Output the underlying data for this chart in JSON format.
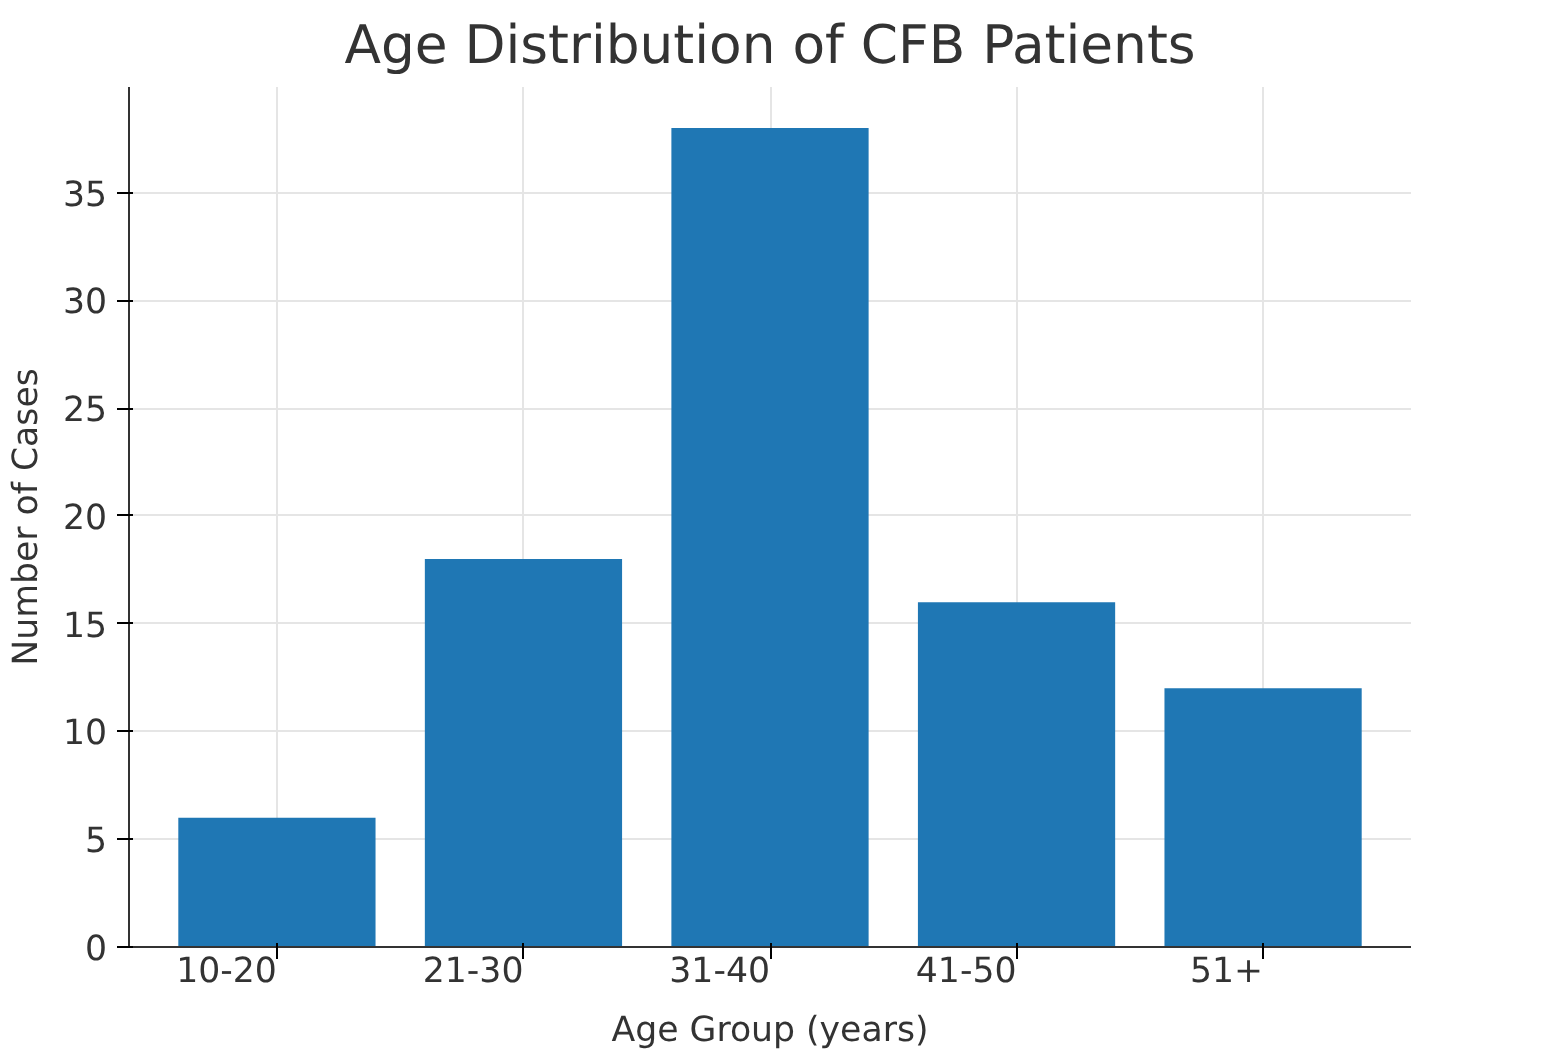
{
  "chart_data": {
    "type": "bar",
    "title": "Age Distribution of CFB Patients",
    "xlabel": "Age Group (years)",
    "ylabel": "Number of Cases",
    "categories": [
      "10-20",
      "21-30",
      "31-40",
      "41-50",
      "51+"
    ],
    "values": [
      6,
      18,
      38,
      16,
      12
    ],
    "color": "#1f77b4",
    "ylim": [
      0,
      39.9
    ],
    "yticks": [
      0,
      5,
      10,
      15,
      20,
      25,
      30,
      35
    ],
    "grid": true
  }
}
